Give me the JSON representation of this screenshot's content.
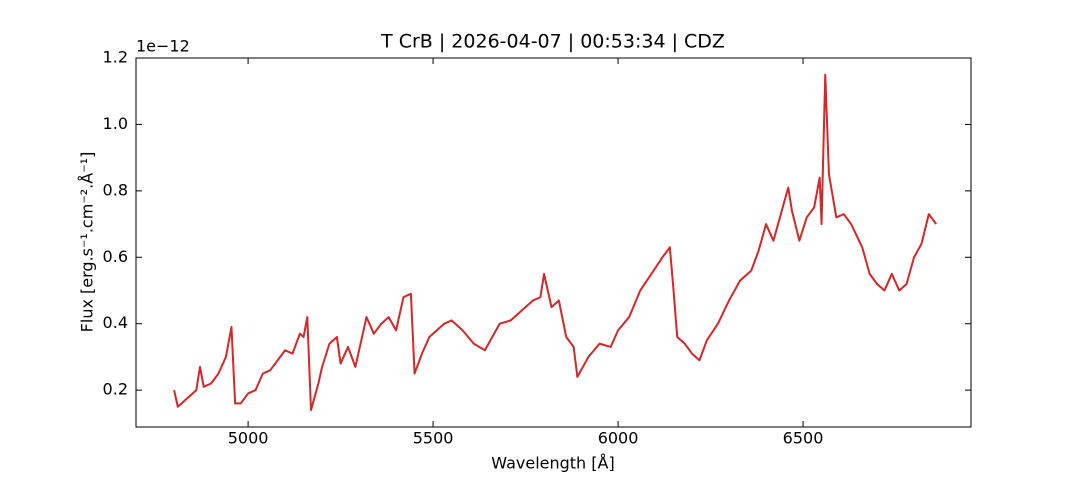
{
  "chart_data": {
    "type": "line",
    "title": "T CrB | 2026-04-07 | 00:53:34 | CDZ",
    "x_label": "Wavelength [Å]",
    "y_label": "Flux [erg.s⁻¹.cm⁻².Å⁻¹]",
    "y_offset_label": "1e−12",
    "x": [
      4800,
      4810,
      4830,
      4850,
      4860,
      4870,
      4880,
      4900,
      4920,
      4940,
      4955,
      4965,
      4980,
      5000,
      5020,
      5040,
      5060,
      5080,
      5100,
      5120,
      5140,
      5150,
      5160,
      5170,
      5190,
      5200,
      5220,
      5240,
      5250,
      5270,
      5290,
      5310,
      5320,
      5340,
      5360,
      5380,
      5400,
      5420,
      5440,
      5450,
      5470,
      5490,
      5510,
      5530,
      5550,
      5580,
      5610,
      5640,
      5660,
      5680,
      5710,
      5740,
      5770,
      5790,
      5800,
      5820,
      5840,
      5860,
      5880,
      5890,
      5920,
      5950,
      5980,
      6000,
      6030,
      6060,
      6090,
      6120,
      6140,
      6150,
      6160,
      6180,
      6200,
      6220,
      6240,
      6270,
      6300,
      6330,
      6360,
      6380,
      6400,
      6420,
      6440,
      6460,
      6470,
      6490,
      6510,
      6530,
      6545,
      6550,
      6560,
      6570,
      6590,
      6610,
      6630,
      6660,
      6680,
      6700,
      6720,
      6740,
      6760,
      6780,
      6800,
      6820,
      6840,
      6860
    ],
    "series": [
      {
        "name": "T CrB",
        "color": "#d62728",
        "values": [
          0.2,
          0.15,
          0.17,
          0.19,
          0.2,
          0.27,
          0.21,
          0.22,
          0.25,
          0.3,
          0.39,
          0.16,
          0.16,
          0.19,
          0.2,
          0.25,
          0.26,
          0.29,
          0.32,
          0.31,
          0.37,
          0.36,
          0.42,
          0.14,
          0.22,
          0.27,
          0.34,
          0.36,
          0.28,
          0.33,
          0.27,
          0.37,
          0.42,
          0.37,
          0.4,
          0.42,
          0.38,
          0.48,
          0.49,
          0.25,
          0.31,
          0.36,
          0.38,
          0.4,
          0.41,
          0.38,
          0.34,
          0.32,
          0.36,
          0.4,
          0.41,
          0.44,
          0.47,
          0.48,
          0.55,
          0.45,
          0.47,
          0.36,
          0.33,
          0.24,
          0.3,
          0.34,
          0.33,
          0.38,
          0.42,
          0.5,
          0.55,
          0.6,
          0.63,
          0.5,
          0.36,
          0.34,
          0.31,
          0.29,
          0.35,
          0.4,
          0.47,
          0.53,
          0.56,
          0.62,
          0.7,
          0.65,
          0.73,
          0.81,
          0.74,
          0.65,
          0.72,
          0.75,
          0.84,
          0.7,
          1.15,
          0.85,
          0.72,
          0.73,
          0.7,
          0.63,
          0.55,
          0.52,
          0.5,
          0.55,
          0.5,
          0.52,
          0.6,
          0.64,
          0.73,
          0.7
        ]
      }
    ],
    "xlim": [
      4697,
      6954
    ],
    "ylim": [
      0.089,
      1.2
    ],
    "xticks": [
      5000,
      5500,
      6000,
      6500
    ],
    "yticks": [
      0.2,
      0.4,
      0.6,
      0.8,
      {
        "value": 1.0,
        "label": "1.0"
      },
      1.2
    ],
    "grid": false
  }
}
